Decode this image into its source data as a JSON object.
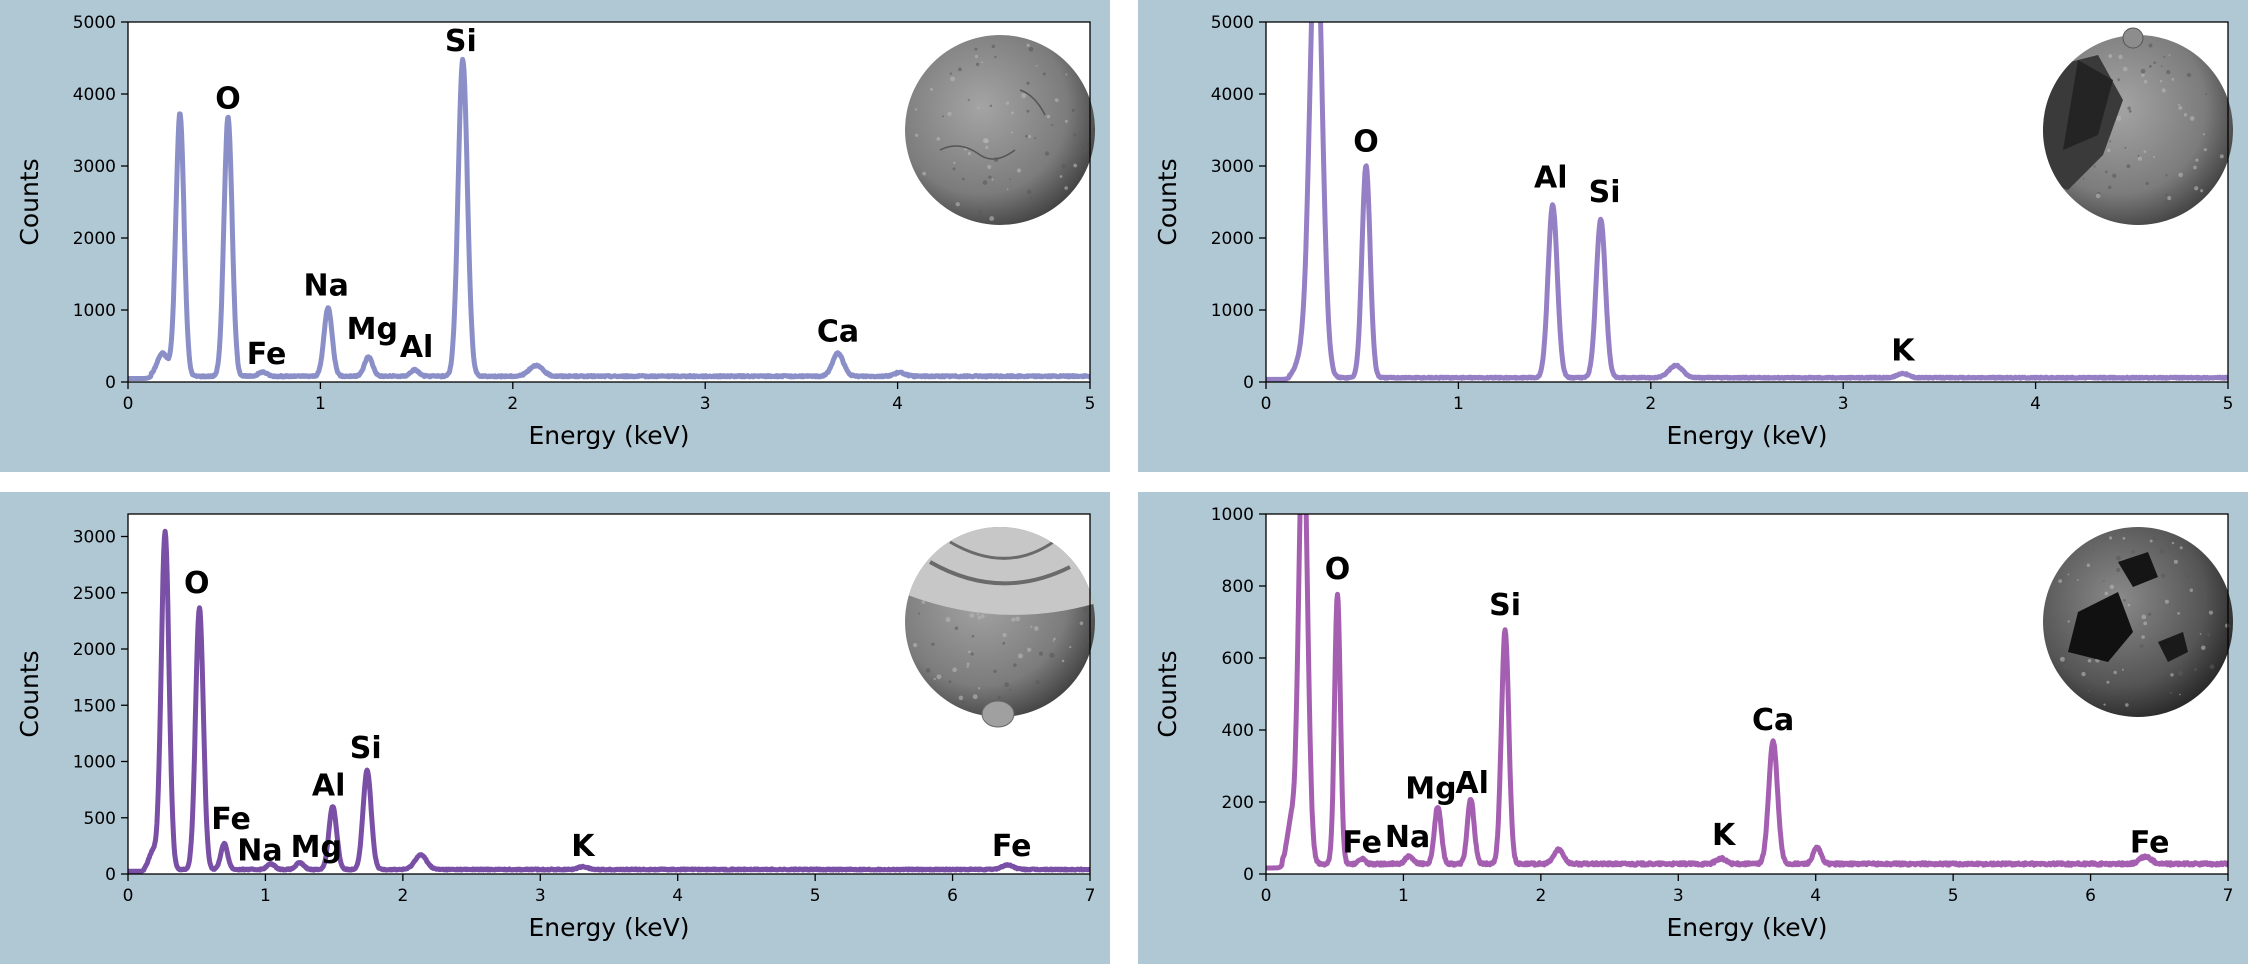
{
  "chart_data": [
    {
      "type": "line",
      "xlabel": "Energy (keV)",
      "ylabel": "Counts",
      "xlim": [
        0,
        5
      ],
      "ylim": [
        0,
        5000
      ],
      "xticks": [
        0,
        1,
        2,
        3,
        4,
        5
      ],
      "yticks": [
        0,
        1000,
        2000,
        3000,
        4000,
        5000
      ],
      "grid": false,
      "color": "#8b8fc8",
      "baseline": 80,
      "peaks": [
        {
          "x": 0.27,
          "y": 3650,
          "w": 0.03
        },
        {
          "x": 0.52,
          "y": 3600,
          "w": 0.03
        },
        {
          "x": 0.7,
          "y": 60,
          "w": 0.03
        },
        {
          "x": 1.04,
          "y": 950,
          "w": 0.03
        },
        {
          "x": 1.25,
          "y": 270,
          "w": 0.03
        },
        {
          "x": 1.49,
          "y": 90,
          "w": 0.03
        },
        {
          "x": 1.74,
          "y": 4400,
          "w": 0.034
        },
        {
          "x": 2.12,
          "y": 150,
          "w": 0.05
        },
        {
          "x": 3.69,
          "y": 320,
          "w": 0.04
        },
        {
          "x": 4.01,
          "y": 50,
          "w": 0.04
        }
      ],
      "peak_labels": [
        {
          "text": "O",
          "x": 0.52,
          "y": 3800
        },
        {
          "text": "Fe",
          "x": 0.72,
          "y": 250
        },
        {
          "text": "Na",
          "x": 1.03,
          "y": 1200
        },
        {
          "text": "Mg",
          "x": 1.27,
          "y": 600
        },
        {
          "text": "Al",
          "x": 1.5,
          "y": 350
        },
        {
          "text": "Si",
          "x": 1.73,
          "y": 4600
        },
        {
          "text": "Ca",
          "x": 3.69,
          "y": 560
        }
      ],
      "image": "sphere-smooth"
    },
    {
      "type": "line",
      "xlabel": "Energy (keV)",
      "ylabel": "Counts",
      "xlim": [
        0,
        5
      ],
      "ylim": [
        0,
        5000
      ],
      "xticks": [
        0,
        1,
        2,
        3,
        4,
        5
      ],
      "yticks": [
        0,
        1000,
        2000,
        3000,
        4000,
        5000
      ],
      "grid": false,
      "color": "#9580c6",
      "baseline": 60,
      "peaks": [
        {
          "x": 0.26,
          "y": 6500,
          "w": 0.045
        },
        {
          "x": 0.52,
          "y": 2950,
          "w": 0.03
        },
        {
          "x": 1.49,
          "y": 2400,
          "w": 0.034
        },
        {
          "x": 1.74,
          "y": 2200,
          "w": 0.034
        },
        {
          "x": 2.13,
          "y": 170,
          "w": 0.05
        },
        {
          "x": 3.31,
          "y": 60,
          "w": 0.04
        }
      ],
      "peak_labels": [
        {
          "text": "O",
          "x": 0.52,
          "y": 3200
        },
        {
          "text": "Al",
          "x": 1.48,
          "y": 2700
        },
        {
          "text": "Si",
          "x": 1.76,
          "y": 2500
        },
        {
          "text": "K",
          "x": 3.31,
          "y": 300
        }
      ],
      "image": "sphere-fractured"
    },
    {
      "type": "line",
      "xlabel": "Energy (keV)",
      "ylabel": "Counts",
      "xlim": [
        0,
        7
      ],
      "ylim": [
        0,
        3200
      ],
      "xticks": [
        0,
        1,
        2,
        3,
        4,
        5,
        6,
        7
      ],
      "yticks": [
        0,
        500,
        1000,
        1500,
        2000,
        2500,
        3000
      ],
      "grid": false,
      "color": "#7a4fa6",
      "baseline": 40,
      "peaks": [
        {
          "x": 0.27,
          "y": 3000,
          "w": 0.04
        },
        {
          "x": 0.52,
          "y": 2330,
          "w": 0.04
        },
        {
          "x": 0.7,
          "y": 230,
          "w": 0.035
        },
        {
          "x": 1.04,
          "y": 50,
          "w": 0.04
        },
        {
          "x": 1.25,
          "y": 60,
          "w": 0.04
        },
        {
          "x": 1.49,
          "y": 560,
          "w": 0.04
        },
        {
          "x": 1.74,
          "y": 880,
          "w": 0.042
        },
        {
          "x": 2.13,
          "y": 130,
          "w": 0.06
        },
        {
          "x": 3.31,
          "y": 25,
          "w": 0.05
        },
        {
          "x": 6.4,
          "y": 40,
          "w": 0.06
        }
      ],
      "peak_labels": [
        {
          "text": "O",
          "x": 0.5,
          "y": 2500
        },
        {
          "text": "Fe",
          "x": 0.75,
          "y": 400
        },
        {
          "text": "Na",
          "x": 0.96,
          "y": 120
        },
        {
          "text": "Mg",
          "x": 1.37,
          "y": 150
        },
        {
          "text": "Al",
          "x": 1.46,
          "y": 700
        },
        {
          "text": "Si",
          "x": 1.73,
          "y": 1030
        },
        {
          "text": "K",
          "x": 3.31,
          "y": 160
        },
        {
          "text": "Fe",
          "x": 6.43,
          "y": 160
        }
      ],
      "image": "sphere-capped"
    },
    {
      "type": "line",
      "xlabel": "Energy (keV)",
      "ylabel": "Counts",
      "xlim": [
        0,
        7
      ],
      "ylim": [
        0,
        1000
      ],
      "xticks": [
        0,
        1,
        2,
        3,
        4,
        5,
        6,
        7
      ],
      "yticks": [
        0,
        200,
        400,
        600,
        800,
        1000
      ],
      "grid": false,
      "color": "#a55fb0",
      "baseline": 28,
      "peaks": [
        {
          "x": 0.27,
          "y": 1250,
          "w": 0.045
        },
        {
          "x": 0.52,
          "y": 750,
          "w": 0.03
        },
        {
          "x": 0.7,
          "y": 15,
          "w": 0.03
        },
        {
          "x": 1.04,
          "y": 20,
          "w": 0.04
        },
        {
          "x": 1.25,
          "y": 160,
          "w": 0.035
        },
        {
          "x": 1.49,
          "y": 180,
          "w": 0.035
        },
        {
          "x": 1.74,
          "y": 650,
          "w": 0.038
        },
        {
          "x": 2.13,
          "y": 40,
          "w": 0.05
        },
        {
          "x": 3.31,
          "y": 15,
          "w": 0.05
        },
        {
          "x": 3.69,
          "y": 340,
          "w": 0.045
        },
        {
          "x": 4.01,
          "y": 45,
          "w": 0.04
        },
        {
          "x": 6.4,
          "y": 20,
          "w": 0.06
        }
      ],
      "peak_labels": [
        {
          "text": "O",
          "x": 0.52,
          "y": 820
        },
        {
          "text": "Fe",
          "x": 0.7,
          "y": 60
        },
        {
          "text": "Na",
          "x": 1.03,
          "y": 75
        },
        {
          "text": "Mg",
          "x": 1.2,
          "y": 210
        },
        {
          "text": "Al",
          "x": 1.5,
          "y": 225
        },
        {
          "text": "Si",
          "x": 1.74,
          "y": 720
        },
        {
          "text": "K",
          "x": 3.33,
          "y": 80
        },
        {
          "text": "Ca",
          "x": 3.69,
          "y": 400
        },
        {
          "text": "Fe",
          "x": 6.43,
          "y": 60
        }
      ],
      "image": "sphere-dark-patches"
    }
  ]
}
